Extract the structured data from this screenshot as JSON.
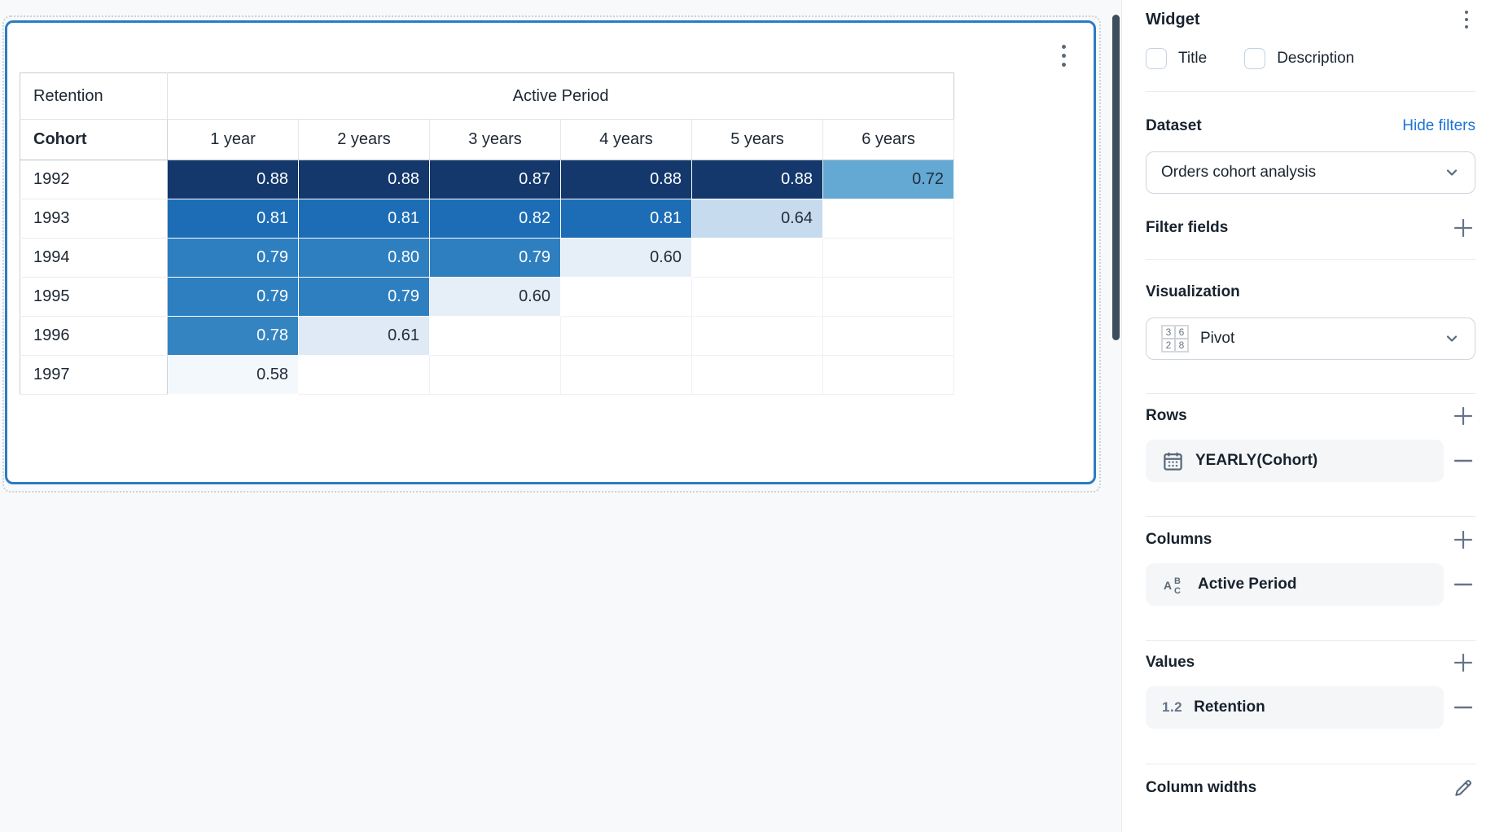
{
  "canvas": {
    "widget_menu_icon": "kebab-menu",
    "table": {
      "corner_label": "Retention",
      "col_group_label": "Active Period",
      "row_dim_label": "Cohort",
      "col_headers": [
        "1 year",
        "2 years",
        "3 years",
        "4 years",
        "5 years",
        "6 years"
      ],
      "rows": [
        {
          "label": "1992",
          "cells": [
            {
              "v": "0.88",
              "bg": "#14386c",
              "fg": "#ffffff"
            },
            {
              "v": "0.88",
              "bg": "#14386c",
              "fg": "#ffffff"
            },
            {
              "v": "0.87",
              "bg": "#14386c",
              "fg": "#ffffff"
            },
            {
              "v": "0.88",
              "bg": "#14386c",
              "fg": "#ffffff"
            },
            {
              "v": "0.88",
              "bg": "#14386c",
              "fg": "#ffffff"
            },
            {
              "v": "0.72",
              "bg": "#64a9d3",
              "fg": "#222e3a"
            }
          ]
        },
        {
          "label": "1993",
          "cells": [
            {
              "v": "0.81",
              "bg": "#1d6db6",
              "fg": "#ffffff"
            },
            {
              "v": "0.81",
              "bg": "#1d6db6",
              "fg": "#ffffff"
            },
            {
              "v": "0.82",
              "bg": "#1d6db6",
              "fg": "#ffffff"
            },
            {
              "v": "0.81",
              "bg": "#1d6db6",
              "fg": "#ffffff"
            },
            {
              "v": "0.64",
              "bg": "#c7dbee",
              "fg": "#222e3a"
            },
            null
          ]
        },
        {
          "label": "1994",
          "cells": [
            {
              "v": "0.79",
              "bg": "#2e7fc0",
              "fg": "#ffffff"
            },
            {
              "v": "0.80",
              "bg": "#2e7fc0",
              "fg": "#ffffff"
            },
            {
              "v": "0.79",
              "bg": "#2e7fc0",
              "fg": "#ffffff"
            },
            {
              "v": "0.60",
              "bg": "#e6eff8",
              "fg": "#222e3a"
            },
            null,
            null
          ]
        },
        {
          "label": "1995",
          "cells": [
            {
              "v": "0.79",
              "bg": "#2e7fc0",
              "fg": "#ffffff"
            },
            {
              "v": "0.79",
              "bg": "#2e7fc0",
              "fg": "#ffffff"
            },
            {
              "v": "0.60",
              "bg": "#e6eff8",
              "fg": "#222e3a"
            },
            null,
            null,
            null
          ]
        },
        {
          "label": "1996",
          "cells": [
            {
              "v": "0.78",
              "bg": "#3484c2",
              "fg": "#ffffff"
            },
            {
              "v": "0.61",
              "bg": "#dfeaf6",
              "fg": "#222e3a"
            },
            null,
            null,
            null,
            null
          ]
        },
        {
          "label": "1997",
          "cells": [
            {
              "v": "0.58",
              "bg": "#f3f8fc",
              "fg": "#222e3a"
            },
            null,
            null,
            null,
            null,
            null
          ]
        }
      ]
    }
  },
  "panel": {
    "title": "Widget",
    "menu_icon": "kebab-menu",
    "checkboxes": [
      {
        "label": "Title",
        "checked": false
      },
      {
        "label": "Description",
        "checked": false
      }
    ],
    "dataset": {
      "heading": "Dataset",
      "action_link": "Hide filters",
      "selected": "Orders cohort analysis"
    },
    "filter_fields": {
      "heading": "Filter fields",
      "add_icon": "plus"
    },
    "visualization": {
      "heading": "Visualization",
      "selected": "Pivot",
      "icon": "pivot-grid",
      "icon_digits": [
        "3",
        "6",
        "2",
        "8"
      ]
    },
    "rows_section": {
      "heading": "Rows",
      "add_icon": "plus",
      "items": [
        {
          "icon": "calendar",
          "label": "YEARLY(Cohort)",
          "remove_icon": "minus"
        }
      ]
    },
    "columns_section": {
      "heading": "Columns",
      "add_icon": "plus",
      "items": [
        {
          "icon": "text-abc",
          "label": "Active Period",
          "remove_icon": "minus"
        }
      ]
    },
    "values_section": {
      "heading": "Values",
      "add_icon": "plus",
      "items": [
        {
          "icon": "numeric",
          "icon_text": "1.2",
          "label": "Retention",
          "remove_icon": "minus"
        }
      ]
    },
    "column_widths": {
      "heading": "Column widths",
      "edit_icon": "pencil"
    }
  },
  "colors": {
    "accent_border": "#2a7cc3",
    "link_blue": "#1b72d9",
    "scale_dark": "#14386c",
    "scale_strong": "#1d6db6",
    "scale_medium": "#2e7fc0",
    "scale_light": "#c7dbee",
    "scale_faint": "#e6eff8",
    "panel_icon_gray": "#5a6a79",
    "scrollbar": "#3e4d5c"
  }
}
